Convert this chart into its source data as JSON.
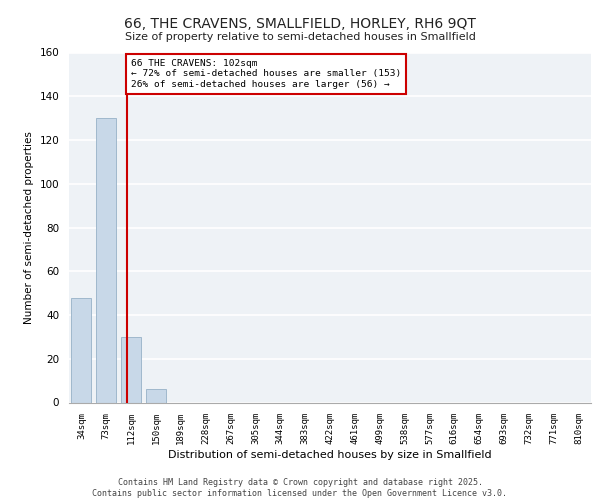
{
  "title_line1": "66, THE CRAVENS, SMALLFIELD, HORLEY, RH6 9QT",
  "title_line2": "Size of property relative to semi-detached houses in Smallfield",
  "xlabel": "Distribution of semi-detached houses by size in Smallfield",
  "ylabel": "Number of semi-detached properties",
  "categories": [
    "34sqm",
    "73sqm",
    "112sqm",
    "150sqm",
    "189sqm",
    "228sqm",
    "267sqm",
    "305sqm",
    "344sqm",
    "383sqm",
    "422sqm",
    "461sqm",
    "499sqm",
    "538sqm",
    "577sqm",
    "616sqm",
    "654sqm",
    "693sqm",
    "732sqm",
    "771sqm",
    "810sqm"
  ],
  "values": [
    48,
    130,
    30,
    6,
    0,
    0,
    0,
    0,
    0,
    0,
    0,
    0,
    0,
    0,
    0,
    0,
    0,
    0,
    0,
    0,
    0
  ],
  "bar_color": "#c8d8e8",
  "bar_edgecolor": "#a0b8cc",
  "redline_x": 1.85,
  "annotation_text": "66 THE CRAVENS: 102sqm\n← 72% of semi-detached houses are smaller (153)\n26% of semi-detached houses are larger (56) →",
  "annotation_box_color": "#ffffff",
  "annotation_box_edgecolor": "#cc0000",
  "redline_color": "#cc0000",
  "ylim": [
    0,
    160
  ],
  "yticks": [
    0,
    20,
    40,
    60,
    80,
    100,
    120,
    140,
    160
  ],
  "footer_line1": "Contains HM Land Registry data © Crown copyright and database right 2025.",
  "footer_line2": "Contains public sector information licensed under the Open Government Licence v3.0.",
  "background_color": "#eef2f6",
  "grid_color": "#ffffff"
}
